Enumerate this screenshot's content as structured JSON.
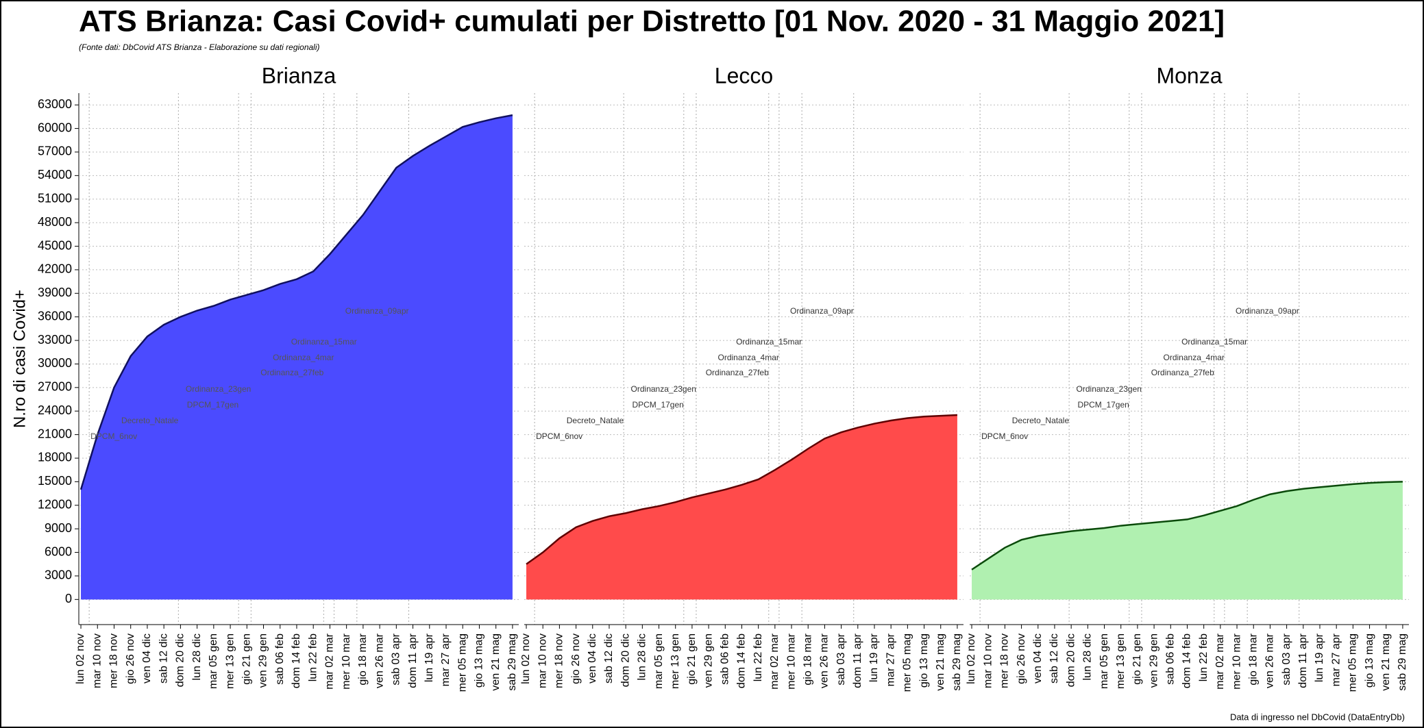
{
  "title": "ATS Brianza: Casi Covid+ cumulati per Distretto [01 Nov. 2020 - 31 Maggio 2021]",
  "subtitle": "(Fonte dati: DbCovid ATS Brianza - Elaborazione su dati regionali)",
  "footer": "Data di ingresso nel DbCovid (DataEntryDb)",
  "annotations": [
    "DPCM_6nov",
    "Decreto_Natale",
    "DPCM_17gen",
    "Ordinanza_23gen",
    "Ordinanza_27feb",
    "Ordinanza_4mar",
    "Ordinanza_15mar",
    "Ordinanza_09apr"
  ],
  "chart_data": [
    {
      "type": "area",
      "title": "Brianza",
      "ylabel": "N.ro di casi Covid+",
      "color": "#4b4bff",
      "line_color": "#101060",
      "categories": [
        "lun 02 nov",
        "mar 10 nov",
        "mer 18 nov",
        "gio 26 nov",
        "ven 04 dic",
        "sab 12 dic",
        "dom 20 dic",
        "lun 28 dic",
        "mar 05 gen",
        "mer 13 gen",
        "gio 21 gen",
        "ven 29 gen",
        "sab 06 feb",
        "dom 14 feb",
        "lun 22 feb",
        "mar 02 mar",
        "mer 10 mar",
        "gio 18 mar",
        "ven 26 mar",
        "sab 03 apr",
        "dom 11 apr",
        "lun 19 apr",
        "mar 27 apr",
        "mer 05 mag",
        "gio 13 mag",
        "ven 21 mag",
        "sab 29 mag"
      ],
      "values": [
        14000,
        21000,
        27000,
        31000,
        33500,
        35000,
        36000,
        36800,
        37400,
        38200,
        38800,
        39400,
        40200,
        40800,
        41800,
        44000,
        46500,
        49000,
        52000,
        55000,
        56500,
        57800,
        59000,
        60200,
        60800,
        61300,
        61700
      ],
      "ylim": [
        -3200,
        64500
      ],
      "yticks": [
        0,
        3000,
        6000,
        9000,
        12000,
        15000,
        18000,
        21000,
        24000,
        27000,
        30000,
        33000,
        36000,
        39000,
        42000,
        45000,
        48000,
        51000,
        54000,
        57000,
        60000,
        63000
      ],
      "grid": true
    },
    {
      "type": "area",
      "title": "Lecco",
      "color": "#ff4b4b",
      "line_color": "#600000",
      "categories": [
        "lun 02 nov",
        "mar 10 nov",
        "mer 18 nov",
        "gio 26 nov",
        "ven 04 dic",
        "sab 12 dic",
        "dom 20 dic",
        "lun 28 dic",
        "mar 05 gen",
        "mer 13 gen",
        "gio 21 gen",
        "ven 29 gen",
        "sab 06 feb",
        "dom 14 feb",
        "lun 22 feb",
        "mar 02 mar",
        "mer 10 mar",
        "gio 18 mar",
        "ven 26 mar",
        "sab 03 apr",
        "dom 11 apr",
        "lun 19 apr",
        "mar 27 apr",
        "mer 05 mag",
        "gio 13 mag",
        "ven 21 mag",
        "sab 29 mag"
      ],
      "values": [
        4500,
        6000,
        7800,
        9200,
        10000,
        10600,
        11000,
        11500,
        11900,
        12400,
        13000,
        13500,
        14000,
        14600,
        15300,
        16500,
        17800,
        19200,
        20500,
        21300,
        21900,
        22400,
        22800,
        23100,
        23300,
        23400,
        23500
      ],
      "ylim": [
        -3200,
        64500
      ],
      "yticks": [
        0,
        3000,
        6000,
        9000,
        12000,
        15000,
        18000,
        21000,
        24000,
        27000,
        30000,
        33000,
        36000,
        39000,
        42000,
        45000,
        48000,
        51000,
        54000,
        57000,
        60000,
        63000
      ],
      "grid": true
    },
    {
      "type": "area",
      "title": "Monza",
      "color": "#b0f0b0",
      "line_color": "#0a4a0a",
      "categories": [
        "lun 02 nov",
        "mar 10 nov",
        "mer 18 nov",
        "gio 26 nov",
        "ven 04 dic",
        "sab 12 dic",
        "dom 20 dic",
        "lun 28 dic",
        "mar 05 gen",
        "mer 13 gen",
        "gio 21 gen",
        "ven 29 gen",
        "sab 06 feb",
        "dom 14 feb",
        "lun 22 feb",
        "mar 02 mar",
        "mer 10 mar",
        "gio 18 mar",
        "ven 26 mar",
        "sab 03 apr",
        "dom 11 apr",
        "lun 19 apr",
        "mar 27 apr",
        "mer 05 mag",
        "gio 13 mag",
        "ven 21 mag",
        "sab 29 mag"
      ],
      "values": [
        3800,
        5200,
        6600,
        7600,
        8100,
        8400,
        8700,
        8900,
        9100,
        9400,
        9600,
        9800,
        10000,
        10200,
        10700,
        11300,
        11900,
        12700,
        13400,
        13800,
        14100,
        14300,
        14500,
        14700,
        14850,
        14950,
        15000
      ],
      "ylim": [
        -3200,
        64500
      ],
      "yticks": [
        0,
        3000,
        6000,
        9000,
        12000,
        15000,
        18000,
        21000,
        24000,
        27000,
        30000,
        33000,
        36000,
        39000,
        42000,
        45000,
        48000,
        51000,
        54000,
        57000,
        60000,
        63000
      ],
      "grid": true
    }
  ]
}
